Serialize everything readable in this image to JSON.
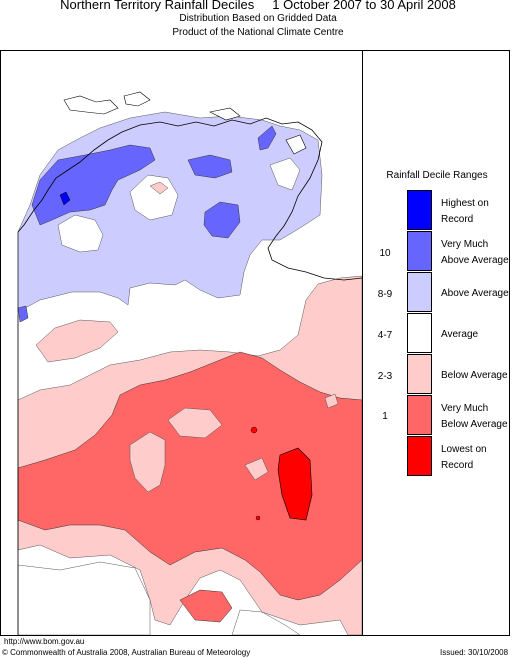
{
  "header": {
    "title": "Northern Territory Rainfall Deciles     1 October 2007 to 30 April 2008",
    "subtitle1": "Distribution Based on Gridded Data",
    "subtitle2": "Product of the National Climate Centre"
  },
  "legend": {
    "title": "Rainfall Decile Ranges",
    "items": [
      {
        "range": "",
        "line1": "Highest on",
        "line2": "Record",
        "color": "#0000ff"
      },
      {
        "range": "10",
        "line1": "Very Much",
        "line2": "Above Average",
        "color": "#6666ff"
      },
      {
        "range": "8-9",
        "line1": "Above Average",
        "line2": "",
        "color": "#ccccff"
      },
      {
        "range": "4-7",
        "line1": "Average",
        "line2": "",
        "color": "#ffffff"
      },
      {
        "range": "2-3",
        "line1": "Below Average",
        "line2": "",
        "color": "#ffcccc"
      },
      {
        "range": "1",
        "line1": "Very Much",
        "line2": "Below Average",
        "color": "#ff6666"
      },
      {
        "range": "",
        "line1": "Lowest on",
        "line2": "Record",
        "color": "#ff0000"
      }
    ]
  },
  "footer": {
    "url": "http://www.bom.gov.au",
    "copyright": "© Commonwealth of Australia 2008, Australian Bureau of Meteorology",
    "issued": "Issued: 30/10/2008"
  }
}
